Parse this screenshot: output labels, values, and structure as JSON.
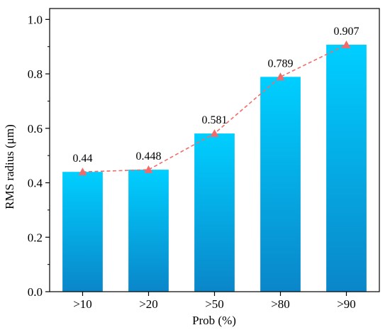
{
  "chart_data": {
    "type": "bar",
    "categories": [
      ">10",
      ">20",
      ">50",
      ">80",
      ">90"
    ],
    "values": [
      0.44,
      0.448,
      0.581,
      0.789,
      0.907
    ],
    "value_labels": [
      "0.44",
      "0.448",
      "0.581",
      "0.789",
      "0.907"
    ],
    "overlay": {
      "type": "line",
      "style": "dashed",
      "marker": "triangle",
      "values": [
        0.44,
        0.448,
        0.581,
        0.789,
        0.907
      ]
    },
    "xlabel": "Prob (%)",
    "ylabel": "RMS radius (μm)",
    "ylim": [
      0,
      1.0
    ],
    "yticks": [
      0.0,
      0.2,
      0.4,
      0.6,
      0.8,
      1.0
    ],
    "ytick_labels": [
      "0.0",
      "0.2",
      "0.4",
      "0.6",
      "0.8",
      "1.0"
    ],
    "grid": false,
    "legend": "none",
    "colors": {
      "bar_top": "#00cfff",
      "bar_bottom": "#0a86c9",
      "line": "#f26b6b",
      "marker": "#f26b6b"
    }
  }
}
